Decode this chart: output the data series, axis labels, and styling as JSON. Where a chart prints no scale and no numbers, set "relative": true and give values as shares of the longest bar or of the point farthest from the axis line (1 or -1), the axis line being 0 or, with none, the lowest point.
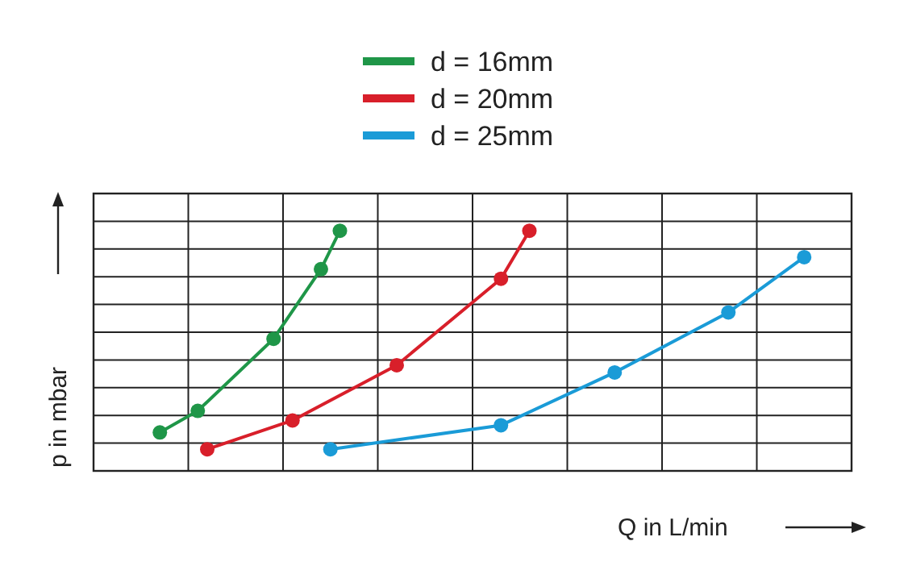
{
  "chart_data": {
    "type": "line",
    "relative": true,
    "xlabel": "Q in L/min",
    "ylabel": "p in mbar",
    "legend": "top",
    "grid": true,
    "marker": "circle",
    "line_style": "solid",
    "categories": [
      null,
      null,
      null,
      null,
      null,
      null,
      null,
      null,
      null,
      null,
      null,
      null,
      null,
      null,
      null,
      null,
      null,
      null,
      null,
      null,
      null,
      null,
      null,
      null,
      null,
      null,
      null,
      null,
      null,
      null,
      null,
      null,
      null,
      null,
      null,
      null,
      null,
      null,
      null,
      null,
      null,
      null,
      null,
      null,
      null,
      null,
      null,
      null,
      null,
      null,
      null,
      null,
      null,
      null,
      null,
      null,
      null,
      null,
      null,
      null,
      null,
      null,
      null,
      null,
      null,
      null,
      null,
      null,
      null,
      null,
      null,
      null,
      null,
      null,
      null,
      null,
      null,
      null,
      null,
      null,
      null
    ],
    "series": [
      {
        "name": "d = 16mm",
        "color": "#1f9648",
        "values": [
          null,
          null,
          null,
          null,
          null,
          null,
          null,
          0.16,
          null,
          null,
          null,
          0.25,
          null,
          null,
          null,
          null,
          null,
          null,
          null,
          0.55,
          null,
          null,
          null,
          null,
          0.84,
          null,
          1,
          null,
          null,
          null,
          null,
          null,
          null,
          null,
          null,
          null,
          null,
          null,
          null,
          null,
          null,
          null,
          null,
          null,
          null,
          null,
          null,
          null,
          null,
          null,
          null,
          null,
          null,
          null,
          null,
          null,
          null,
          null,
          null,
          null,
          null,
          null,
          null,
          null,
          null,
          null,
          null,
          null,
          null,
          null,
          null,
          null,
          null,
          null,
          null,
          null,
          null,
          null,
          null,
          null,
          null
        ]
      },
      {
        "name": "d = 20mm",
        "color": "#d81f2a",
        "values": [
          null,
          null,
          null,
          null,
          null,
          null,
          null,
          null,
          null,
          null,
          null,
          null,
          0.09,
          null,
          null,
          null,
          null,
          null,
          null,
          null,
          null,
          0.21,
          null,
          null,
          null,
          null,
          null,
          null,
          null,
          null,
          null,
          null,
          0.44,
          null,
          null,
          null,
          null,
          null,
          null,
          null,
          null,
          null,
          null,
          0.8,
          null,
          null,
          1,
          null,
          null,
          null,
          null,
          null,
          null,
          null,
          null,
          null,
          null,
          null,
          null,
          null,
          null,
          null,
          null,
          null,
          null,
          null,
          null,
          null,
          null,
          null,
          null,
          null,
          null,
          null,
          null,
          null,
          null,
          null,
          null,
          null,
          null
        ]
      },
      {
        "name": "d = 25mm",
        "color": "#1a9bd7",
        "values": [
          null,
          null,
          null,
          null,
          null,
          null,
          null,
          null,
          null,
          null,
          null,
          null,
          null,
          null,
          null,
          null,
          null,
          null,
          null,
          null,
          null,
          null,
          null,
          null,
          null,
          0.09,
          null,
          null,
          null,
          null,
          null,
          null,
          null,
          null,
          null,
          null,
          null,
          null,
          null,
          null,
          null,
          null,
          null,
          0.19,
          null,
          null,
          null,
          null,
          null,
          null,
          null,
          null,
          null,
          null,
          null,
          0.41,
          null,
          null,
          null,
          null,
          null,
          null,
          null,
          null,
          null,
          null,
          null,
          0.66,
          null,
          null,
          null,
          null,
          null,
          null,
          null,
          0.89,
          null,
          null,
          null,
          null,
          null
        ]
      }
    ]
  }
}
